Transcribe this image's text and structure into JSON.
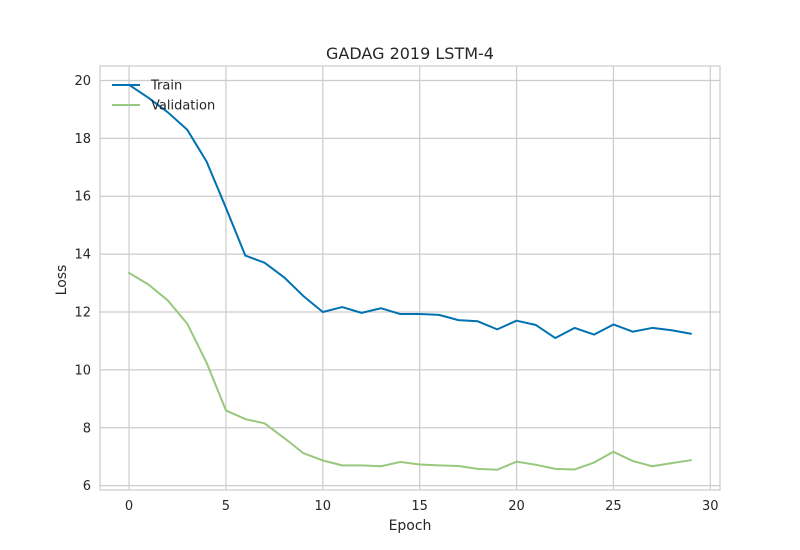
{
  "chart_data": {
    "type": "line",
    "title": "GADAG 2019 LSTM-4",
    "xlabel": "Epoch",
    "ylabel": "Loss",
    "xlim": [
      -1.5,
      30.5
    ],
    "ylim": [
      5.85,
      20.5
    ],
    "xticks": [
      0,
      5,
      10,
      15,
      20,
      25,
      30
    ],
    "yticks": [
      6,
      8,
      10,
      12,
      14,
      16,
      18,
      20
    ],
    "grid": true,
    "legend_position": "top-left",
    "x": [
      0,
      1,
      2,
      3,
      4,
      5,
      6,
      7,
      8,
      9,
      10,
      11,
      12,
      13,
      14,
      15,
      16,
      17,
      18,
      19,
      20,
      21,
      22,
      23,
      24,
      25,
      26,
      27,
      28,
      29
    ],
    "series": [
      {
        "name": "Train",
        "color": "#0072b2",
        "values": [
          19.85,
          19.4,
          18.9,
          18.3,
          17.2,
          15.6,
          13.95,
          13.7,
          13.2,
          12.55,
          12.0,
          12.17,
          11.97,
          12.13,
          11.93,
          11.93,
          11.9,
          11.72,
          11.68,
          11.4,
          11.7,
          11.55,
          11.1,
          11.45,
          11.22,
          11.57,
          11.32,
          11.45,
          11.37,
          11.25
        ]
      },
      {
        "name": "Validation",
        "color": "#98c87d",
        "values": [
          13.35,
          12.95,
          12.4,
          11.6,
          10.25,
          8.6,
          8.3,
          8.15,
          7.65,
          7.12,
          6.87,
          6.7,
          6.7,
          6.67,
          6.82,
          6.73,
          6.7,
          6.68,
          6.58,
          6.55,
          6.83,
          6.72,
          6.58,
          6.56,
          6.8,
          7.17,
          6.85,
          6.67,
          6.78,
          6.88
        ]
      }
    ]
  }
}
